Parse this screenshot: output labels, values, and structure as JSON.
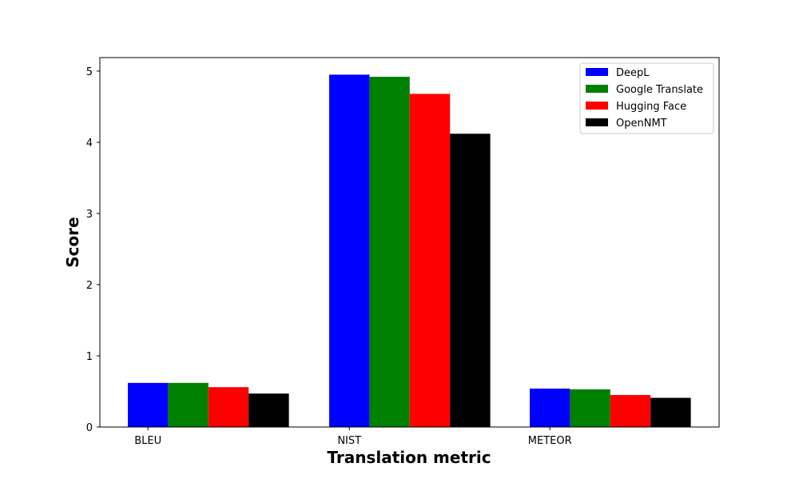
{
  "chart_data": {
    "type": "bar",
    "title": "",
    "xlabel": "Translation metric",
    "ylabel": "Score",
    "categories": [
      "BLEU",
      "NIST",
      "METEOR"
    ],
    "series": [
      {
        "name": "DeepL",
        "color": "#0000ff",
        "values": [
          0.62,
          4.95,
          0.54
        ]
      },
      {
        "name": "Google Translate",
        "color": "#008000",
        "values": [
          0.62,
          4.92,
          0.53
        ]
      },
      {
        "name": "Hugging Face",
        "color": "#ff0000",
        "values": [
          0.56,
          4.68,
          0.45
        ]
      },
      {
        "name": "OpenNMT",
        "color": "#000000",
        "values": [
          0.47,
          4.12,
          0.41
        ]
      }
    ],
    "ylim": [
      0,
      5.19
    ],
    "yticks": [
      "0",
      "1",
      "2",
      "3",
      "4",
      "5"
    ],
    "grid": false,
    "legend_position": "top-right"
  }
}
